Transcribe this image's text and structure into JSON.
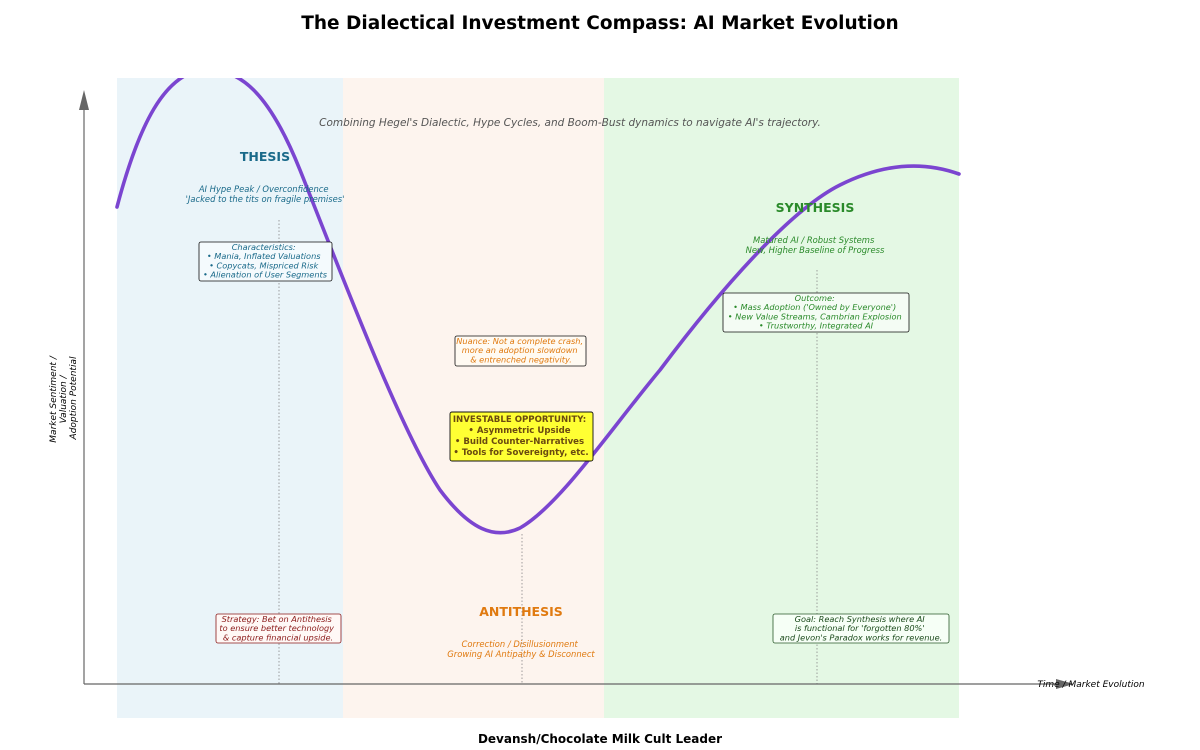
{
  "title": "The Dialectical Investment Compass: AI Market Evolution",
  "subtitle": "Combining Hegel's Dialectic, Hype Cycles, and Boom-Bust dynamics to navigate AI's trajectory.",
  "y_axis_label": [
    "Market Sentiment /",
    "Valuation /",
    "Adoption Potential"
  ],
  "x_axis_label": "Time / Market Evolution",
  "footer": "Devansh/Chocolate Milk Cult Leader",
  "colors": {
    "curve": "#7b45d0",
    "thesis": "#1a6a8a",
    "antithesis": "#e07a10",
    "synthesis": "#2a8a2a",
    "strategy": "#8b1a1a",
    "goal": "#1a4a1a",
    "opportunity_bg": "#ffff33"
  },
  "thesis": {
    "heading": "THESIS",
    "desc": [
      "AI Hype Peak / Overconfidence",
      "'Jacked to the tits on fragile premises'"
    ],
    "box": [
      "Characteristics:",
      "• Mania, Inflated Valuations",
      "• Copycats, Mispriced Risk",
      "• Alienation of User Segments"
    ]
  },
  "antithesis": {
    "heading": "ANTITHESIS",
    "desc": [
      "Correction / Disillusionment",
      "Growing AI Antipathy & Disconnect"
    ],
    "nuance": [
      "Nuance: Not a complete crash,",
      "more an adoption slowdown",
      "& entrenched negativity."
    ],
    "opportunity": [
      "INVESTABLE OPPORTUNITY:",
      "• Asymmetric Upside",
      "• Build Counter-Narratives",
      "• Tools for Sovereignty, etc."
    ]
  },
  "synthesis": {
    "heading": "SYNTHESIS",
    "desc": [
      "Matured AI / Robust Systems",
      "New, Higher Baseline of Progress"
    ],
    "box": [
      "Outcome:",
      "• Mass Adoption ('Owned by Everyone')",
      "• New Value Streams, Cambrian Explosion",
      "• Trustworthy, Integrated AI"
    ]
  },
  "strategy": [
    "Strategy: Bet on Antithesis",
    "to ensure better technology",
    "& capture financial upside."
  ],
  "goal": [
    "Goal: Reach Synthesis where AI",
    "is functional for 'forgotten 80%'",
    "and Jevon's Paradox works for revenue."
  ]
}
